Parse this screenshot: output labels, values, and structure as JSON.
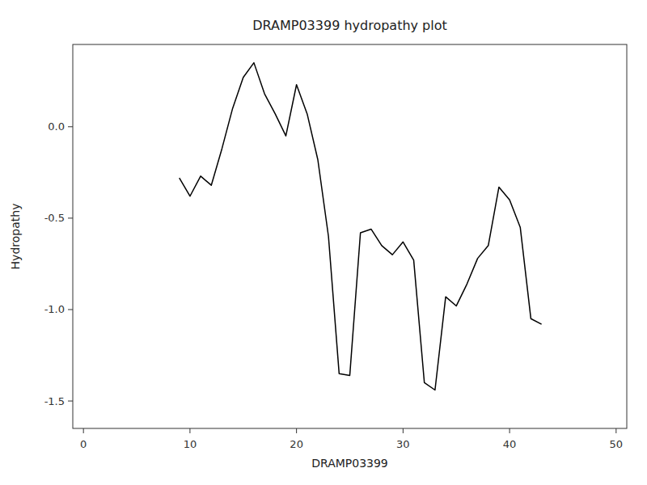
{
  "chart_data": {
    "type": "line",
    "title": "DRAMP03399 hydropathy plot",
    "xlabel": "DRAMP03399",
    "ylabel": "Hydropathy",
    "x": [
      9,
      10,
      11,
      12,
      13,
      14,
      15,
      16,
      17,
      18,
      19,
      20,
      21,
      22,
      23,
      24,
      25,
      26,
      27,
      28,
      29,
      30,
      31,
      32,
      33,
      34,
      35,
      36,
      37,
      38,
      39,
      40,
      41,
      42,
      43
    ],
    "values": [
      -0.28,
      -0.38,
      -0.27,
      -0.32,
      -0.12,
      0.1,
      0.27,
      0.35,
      0.18,
      0.07,
      -0.05,
      0.23,
      0.07,
      -0.18,
      -0.6,
      -1.35,
      -1.36,
      -0.58,
      -0.56,
      -0.65,
      -0.7,
      -0.63,
      -0.73,
      -1.4,
      -1.44,
      -0.93,
      -0.98,
      -0.86,
      -0.72,
      -0.65,
      -0.33,
      -0.4,
      -0.55,
      -1.05,
      -1.08
    ],
    "color": "#000000",
    "xlim": [
      -1,
      51
    ],
    "ylim": [
      -1.65,
      0.45
    ],
    "xticks": [
      0,
      10,
      20,
      30,
      40,
      50
    ],
    "yticks": [
      {
        "value": 0.0,
        "label": "0.0"
      },
      {
        "value": -0.5,
        "label": "-0.5"
      },
      {
        "value": -1.0,
        "label": "-1.0"
      },
      {
        "value": -1.5,
        "label": "-1.5"
      }
    ],
    "grid": false
  }
}
